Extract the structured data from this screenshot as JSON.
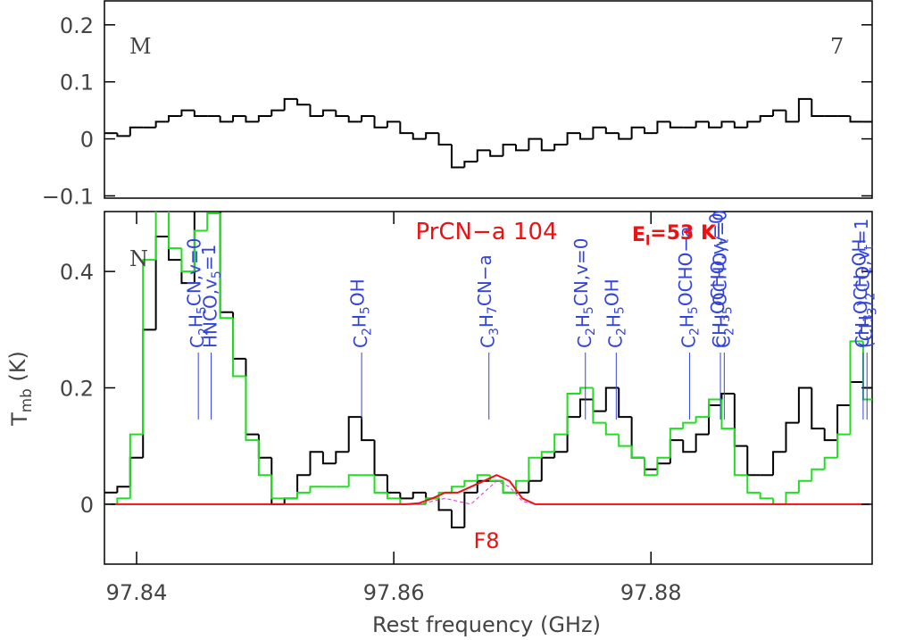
{
  "chart_data": [
    {
      "type": "step",
      "annotations": [
        {
          "text": "M",
          "pos": "left"
        },
        {
          "text": "7",
          "pos": "right"
        }
      ],
      "x": [
        97.838,
        97.839,
        97.84,
        97.841,
        97.842,
        97.843,
        97.844,
        97.845,
        97.846,
        97.847,
        97.848,
        97.849,
        97.85,
        97.851,
        97.852,
        97.853,
        97.854,
        97.855,
        97.856,
        97.857,
        97.858,
        97.859,
        97.86,
        97.861,
        97.862,
        97.863,
        97.864,
        97.865,
        97.866,
        97.867,
        97.868,
        97.869,
        97.87,
        97.871,
        97.872,
        97.873,
        97.874,
        97.875,
        97.876,
        97.877,
        97.878,
        97.879,
        97.88,
        97.881,
        97.882,
        97.883,
        97.884,
        97.885,
        97.886,
        97.887,
        97.888,
        97.889,
        97.89,
        97.891,
        97.892,
        97.893,
        97.894,
        97.895,
        97.896,
        97.897
      ],
      "series": [
        {
          "color": "#000000",
          "values": [
            0.01,
            0.005,
            0.02,
            0.02,
            0.03,
            0.04,
            0.05,
            0.04,
            0.04,
            0.03,
            0.04,
            0.03,
            0.04,
            0.05,
            0.07,
            0.06,
            0.04,
            0.05,
            0.04,
            0.03,
            0.04,
            0.02,
            0.03,
            0.01,
            0.0,
            0.01,
            -0.01,
            -0.05,
            -0.04,
            -0.02,
            -0.03,
            -0.01,
            -0.02,
            0.0,
            -0.02,
            -0.01,
            0.01,
            0.0,
            0.02,
            0.01,
            0.0,
            0.02,
            0.01,
            0.03,
            0.02,
            0.02,
            0.03,
            0.02,
            0.03,
            0.02,
            0.03,
            0.04,
            0.05,
            0.03,
            0.07,
            0.04,
            0.04,
            0.04,
            0.03,
            0.03
          ]
        }
      ],
      "xlim": [
        97.8375,
        97.8972
      ],
      "ylim": [
        -0.104,
        0.242
      ],
      "yticks": [
        {
          "value": -0.1,
          "label": "−0.1"
        },
        0,
        0.1,
        0.2
      ]
    },
    {
      "type": "step",
      "title": "PrCN−a 104",
      "energy": "El=53 K",
      "panel_label": "N",
      "fit_label": "F8",
      "x_label": "Rest frequency (GHz)",
      "y_label": "Tmb (K)",
      "x": [
        97.838,
        97.839,
        97.84,
        97.841,
        97.842,
        97.843,
        97.844,
        97.845,
        97.846,
        97.847,
        97.848,
        97.849,
        97.85,
        97.851,
        97.852,
        97.853,
        97.854,
        97.855,
        97.856,
        97.857,
        97.858,
        97.859,
        97.86,
        97.861,
        97.862,
        97.863,
        97.864,
        97.865,
        97.866,
        97.867,
        97.868,
        97.869,
        97.87,
        97.871,
        97.872,
        97.873,
        97.874,
        97.875,
        97.876,
        97.877,
        97.878,
        97.879,
        97.88,
        97.881,
        97.882,
        97.883,
        97.884,
        97.885,
        97.886,
        97.887,
        97.888,
        97.889,
        97.89,
        97.891,
        97.892,
        97.893,
        97.894,
        97.895,
        97.896,
        97.897
      ],
      "series": [
        {
          "color": "#000000",
          "style": "step",
          "values": [
            0.02,
            0.03,
            0.08,
            0.3,
            0.46,
            0.42,
            0.38,
            0.56,
            0.6,
            0.33,
            0.25,
            0.12,
            0.08,
            0.0,
            0.01,
            0.05,
            0.09,
            0.07,
            0.09,
            0.15,
            0.11,
            0.05,
            0.02,
            0.01,
            0.02,
            0.01,
            -0.01,
            -0.04,
            0.02,
            0.04,
            0.04,
            0.02,
            0.02,
            0.04,
            0.08,
            0.09,
            0.15,
            0.18,
            0.16,
            0.2,
            0.15,
            0.08,
            0.06,
            0.07,
            0.11,
            0.09,
            0.12,
            0.17,
            0.19,
            0.1,
            0.05,
            0.05,
            0.09,
            0.14,
            0.2,
            0.13,
            0.11,
            0.17,
            0.21,
            0.2
          ]
        },
        {
          "color": "#22dd22",
          "style": "step",
          "values": [
            0.0,
            0.01,
            0.12,
            0.42,
            0.52,
            0.44,
            0.4,
            0.47,
            0.5,
            0.32,
            0.22,
            0.11,
            0.05,
            0.01,
            0.01,
            0.02,
            0.03,
            0.03,
            0.03,
            0.05,
            0.05,
            0.02,
            0.01,
            0.0,
            0.0,
            0.01,
            0.02,
            0.03,
            0.04,
            0.05,
            0.04,
            0.02,
            0.04,
            0.08,
            0.09,
            0.12,
            0.19,
            0.2,
            0.14,
            0.12,
            0.1,
            0.08,
            0.05,
            0.08,
            0.13,
            0.14,
            0.15,
            0.18,
            0.13,
            0.05,
            0.02,
            0.01,
            0.0,
            0.02,
            0.04,
            0.06,
            0.08,
            0.12,
            0.28,
            0.18
          ]
        },
        {
          "color": "#dd33dd",
          "style": "dashed",
          "values": [
            0,
            0,
            0,
            0,
            0,
            0,
            0,
            0,
            0,
            0,
            0,
            0,
            0,
            0,
            0,
            0,
            0,
            0,
            0,
            0,
            0,
            0,
            0,
            0,
            0,
            0.005,
            0.01,
            0.005,
            0.0,
            0.02,
            0.04,
            0.03,
            0.005,
            0,
            0,
            0,
            0,
            0,
            0,
            0,
            0,
            0,
            0,
            0,
            0,
            0,
            0,
            0,
            0,
            0,
            0,
            0,
            0,
            0,
            0,
            0,
            0,
            0,
            0,
            0
          ]
        },
        {
          "color": "#ee1111",
          "style": "line",
          "values": [
            0,
            0,
            0,
            0,
            0,
            0,
            0,
            0,
            0,
            0,
            0,
            0,
            0,
            0,
            0,
            0,
            0,
            0,
            0,
            0,
            0,
            0,
            0,
            0,
            0.002,
            0.01,
            0.02,
            0.02,
            0.03,
            0.04,
            0.05,
            0.04,
            0.01,
            0,
            0,
            0,
            0,
            0,
            0,
            0,
            0,
            0,
            0,
            0,
            0,
            0,
            0,
            0,
            0,
            0,
            0,
            0,
            0,
            0,
            0,
            0,
            0,
            0,
            0,
            0
          ]
        }
      ],
      "lines": [
        {
          "text": "C2H5CN,v=0",
          "x": 97.8448
        },
        {
          "text": "HNCO,v5=1",
          "x": 97.8458
        },
        {
          "text": "C2H5OH",
          "x": 97.8575
        },
        {
          "text": "C3H7CN−a",
          "x": 97.8674
        },
        {
          "text": "C2H5CN,v=0",
          "x": 97.8749
        },
        {
          "text": "C2H5OH",
          "x": 97.8773
        },
        {
          "text": "C2H5OCHO−a",
          "x": 97.883
        },
        {
          "text": "CH3OCHO,vt=0",
          "x": 97.8854
        },
        {
          "text": "C2H5OCHO,v=0",
          "x": 97.8857
        },
        {
          "text": "CH3OCH2OH",
          "x": 97.8965
        },
        {
          "text": "(CH3)2CO,vt=1",
          "x": 97.8968
        }
      ],
      "xlim": [
        97.8375,
        97.8972
      ],
      "ylim": [
        -0.103,
        0.503
      ],
      "xticks": [
        97.84,
        97.86,
        97.88
      ],
      "yticks": [
        0,
        0.2,
        0.4
      ]
    }
  ]
}
